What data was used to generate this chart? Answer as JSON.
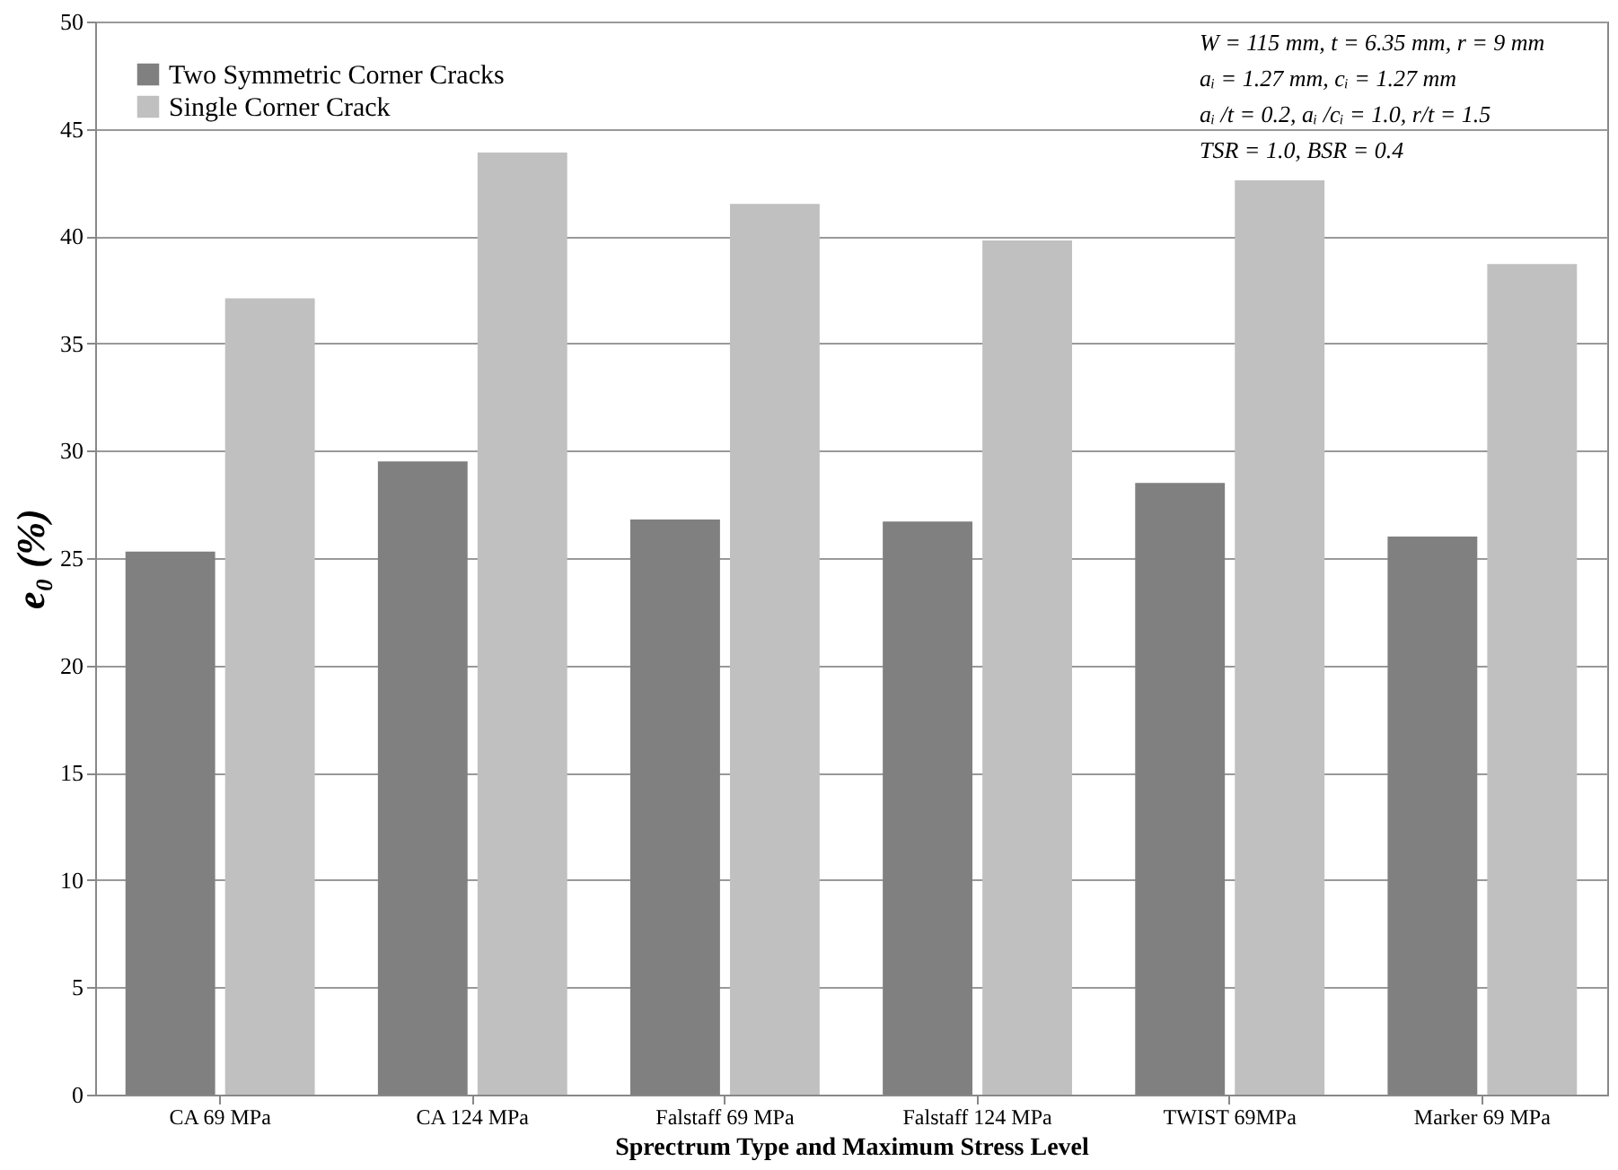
{
  "chart_data": {
    "type": "bar",
    "xlabel": "Sprectrum Type and Maximum Stress Level",
    "ylabel": "e₀ (%)",
    "categories": [
      "CA 69 MPa",
      "CA 124 MPa",
      "Falstaff 69 MPa",
      "Falstaff 124 MPa",
      "TWIST 69MPa",
      "Marker 69 MPa"
    ],
    "series": [
      {
        "name": "Two Symmetric Corner Cracks",
        "color": "#808080",
        "values": [
          25.3,
          29.5,
          26.8,
          26.7,
          28.5,
          26.0
        ]
      },
      {
        "name": "Single Corner Crack",
        "color": "#c0c0c0",
        "values": [
          37.1,
          43.9,
          41.5,
          39.8,
          42.6,
          38.7
        ]
      }
    ],
    "ylim": [
      0,
      50
    ],
    "yticks": [
      0,
      5,
      10,
      15,
      20,
      25,
      30,
      35,
      40,
      45,
      50
    ],
    "grid": "y",
    "legend": "top left",
    "annotations": [
      "W = 115 mm, t = 6.35 mm, r = 9 mm",
      "aᵢ = 1.27 mm, cᵢ = 1.27 mm",
      "aᵢ /t = 0.2, aᵢ /cᵢ = 1.0, r/t = 1.5",
      "TSR = 1.0, BSR = 0.4"
    ]
  }
}
